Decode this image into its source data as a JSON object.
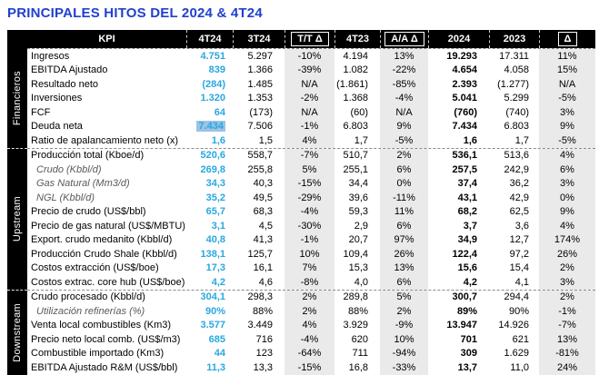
{
  "page_title": "PRINCIPALES HITOS DEL 2024 & 4T24",
  "colors": {
    "title_blue": "#2140cf",
    "quarter_value_cyan": "#29a7e0",
    "delta_column_gray": "#eaeaea",
    "highlight_blue": "#9cc3e4",
    "header_bg": "#000000"
  },
  "table": {
    "columns": [
      "KPI",
      "4T24",
      "3T24",
      "T/T Δ",
      "4T23",
      "A/A Δ",
      "2024",
      "2023",
      "Δ"
    ],
    "delta_cols": [
      3,
      5,
      8
    ],
    "sections": [
      {
        "id": "financieros",
        "label": "Financieros",
        "rows": [
          {
            "kpi": "Ingresos",
            "values": [
              "4.751",
              "5.297",
              "-10%",
              "4.194",
              "13%",
              "19.293",
              "17.311",
              "11%"
            ]
          },
          {
            "kpi": "EBITDA Ajustado",
            "values": [
              "839",
              "1.366",
              "-39%",
              "1.082",
              "-22%",
              "4.654",
              "4.058",
              "15%"
            ]
          },
          {
            "kpi": "Resultado neto",
            "values": [
              "(284)",
              "1.485",
              "N/A",
              "(1.861)",
              "-85%",
              "2.393",
              "(1.277)",
              "N/A"
            ]
          },
          {
            "kpi": "Inversiones",
            "values": [
              "1.320",
              "1.353",
              "-2%",
              "1.368",
              "-4%",
              "5.041",
              "5.299",
              "-5%"
            ]
          },
          {
            "kpi": "FCF",
            "values": [
              "64",
              "(173)",
              "N/A",
              "(60)",
              "N/A",
              "(760)",
              "(740)",
              "3%"
            ]
          },
          {
            "kpi": "Deuda neta",
            "highlight": true,
            "values": [
              "7.434",
              "7.506",
              "-1%",
              "6.803",
              "9%",
              "7.434",
              "6.803",
              "9%"
            ]
          },
          {
            "kpi": "Ratio de apalancamiento neto (x)",
            "values": [
              "1,6",
              "1,5",
              "4%",
              "1,7",
              "-5%",
              "1,6",
              "1,7",
              "-5%"
            ]
          }
        ]
      },
      {
        "id": "upstream",
        "label": "Upstream",
        "rows": [
          {
            "kpi": "Producción total (Kboe/d)",
            "values": [
              "520,6",
              "558,7",
              "-7%",
              "510,7",
              "2%",
              "536,1",
              "513,6",
              "4%"
            ]
          },
          {
            "kpi": "Crudo (Kbbl/d)",
            "italic": true,
            "values": [
              "269,8",
              "255,8",
              "5%",
              "255,1",
              "6%",
              "257,5",
              "242,9",
              "6%"
            ]
          },
          {
            "kpi": "Gas Natural (Mm3/d)",
            "italic": true,
            "values": [
              "34,3",
              "40,3",
              "-15%",
              "34,4",
              "0%",
              "37,4",
              "36,2",
              "3%"
            ]
          },
          {
            "kpi": "NGL (Kbbl/d)",
            "italic": true,
            "values": [
              "35,2",
              "49,5",
              "-29%",
              "39,6",
              "-11%",
              "43,1",
              "42,9",
              "0%"
            ]
          },
          {
            "kpi": "Precio de crudo (US$/bbl)",
            "values": [
              "65,7",
              "68,3",
              "-4%",
              "59,3",
              "11%",
              "68,2",
              "62,5",
              "9%"
            ]
          },
          {
            "kpi": "Precio de gas natural (US$/MBTU)",
            "values": [
              "3,1",
              "4,5",
              "-30%",
              "2,9",
              "6%",
              "3,7",
              "3,6",
              "4%"
            ]
          },
          {
            "kpi": "Export. crudo medanito (Kbbl/d)",
            "values": [
              "40,8",
              "41,3",
              "-1%",
              "20,7",
              "97%",
              "34,9",
              "12,7",
              "174%"
            ]
          },
          {
            "kpi": "Producción Crudo Shale (Kbbl/d)",
            "values": [
              "138,1",
              "125,7",
              "10%",
              "109,4",
              "26%",
              "122,4",
              "97,2",
              "26%"
            ]
          },
          {
            "kpi": "Costos extracción (US$/boe)",
            "values": [
              "17,3",
              "16,1",
              "7%",
              "15,3",
              "13%",
              "15,6",
              "15,4",
              "2%"
            ]
          },
          {
            "kpi": "Costos extrac. core hub (US$/boe)",
            "values": [
              "4,2",
              "4,6",
              "-8%",
              "4,0",
              "6%",
              "4,2",
              "4,1",
              "3%"
            ]
          }
        ]
      },
      {
        "id": "downstream",
        "label": "Downstream",
        "rows": [
          {
            "kpi": "Crudo procesado (Kbbl/d)",
            "values": [
              "304,1",
              "298,3",
              "2%",
              "289,8",
              "5%",
              "300,7",
              "294,4",
              "2%"
            ]
          },
          {
            "kpi": "Utilización refinerías (%)",
            "italic": true,
            "values": [
              "90%",
              "88%",
              "2%",
              "88%",
              "2%",
              "89%",
              "90%",
              "-1%"
            ]
          },
          {
            "kpi": "Venta local combustibles (Km3)",
            "values": [
              "3.577",
              "3.449",
              "4%",
              "3.929",
              "-9%",
              "13.947",
              "14.926",
              "-7%"
            ]
          },
          {
            "kpi": "Precio neto local comb. (US$/m3)",
            "values": [
              "685",
              "716",
              "-4%",
              "620",
              "10%",
              "701",
              "621",
              "13%"
            ]
          },
          {
            "kpi": "Combustible importado (Km3)",
            "values": [
              "44",
              "123",
              "-64%",
              "711",
              "-94%",
              "309",
              "1.629",
              "-81%"
            ]
          },
          {
            "kpi": "EBITDA Ajustado R&M (US$/bbl)",
            "values": [
              "11,3",
              "13,3",
              "-15%",
              "16,8",
              "-33%",
              "13,7",
              "11,0",
              "24%"
            ]
          }
        ]
      }
    ]
  }
}
